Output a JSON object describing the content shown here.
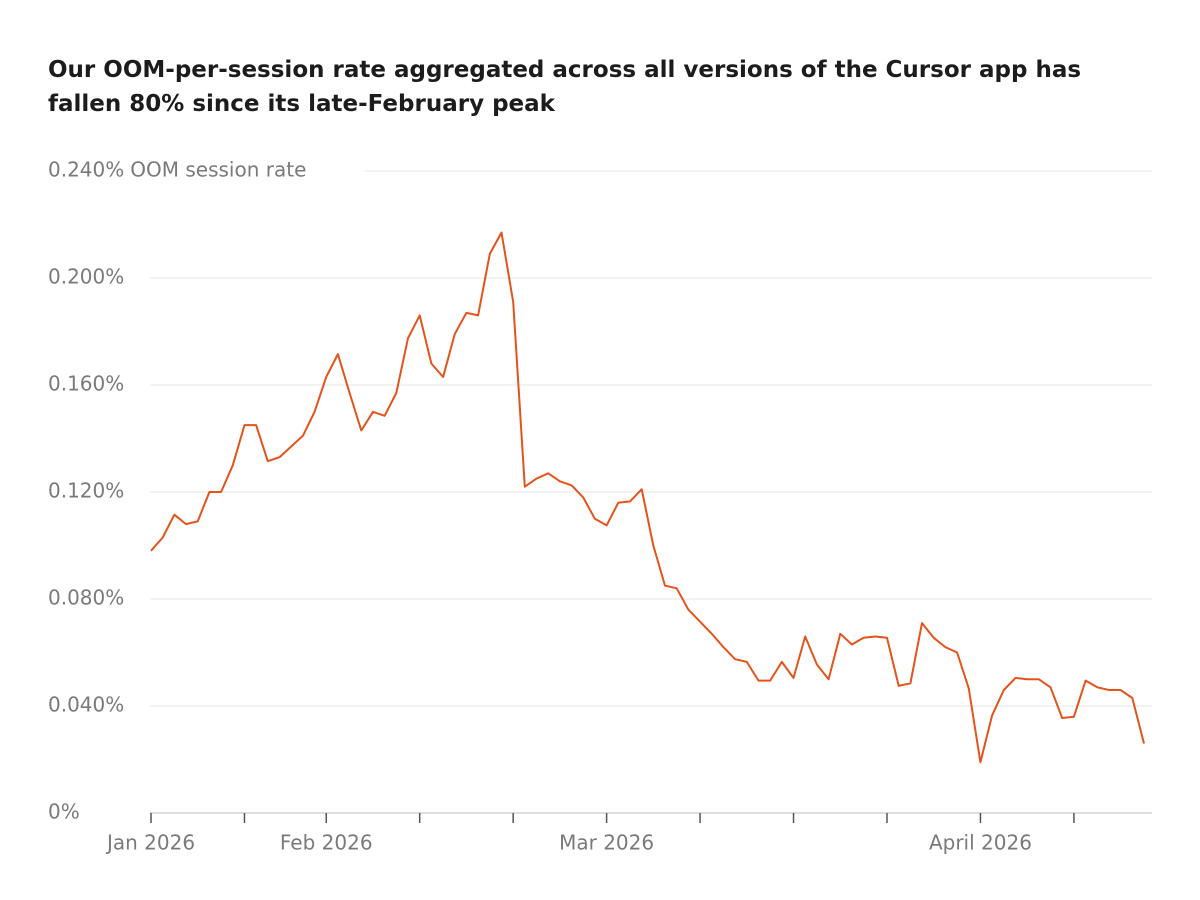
{
  "chart_data": {
    "type": "line",
    "title": "Our OOM-per-session rate aggregated across all versions of the Cursor app has fallen 80% since its late-February peak",
    "ylabel": "OOM session rate",
    "categories": [
      "Jan 2026",
      null,
      null,
      null,
      null,
      null,
      null,
      null,
      null,
      null,
      null,
      null,
      null,
      null,
      null,
      "Feb 2026",
      null,
      null,
      null,
      null,
      null,
      null,
      null,
      null,
      null,
      null,
      null,
      null,
      null,
      null,
      null,
      null,
      null,
      null,
      null,
      null,
      null,
      null,
      null,
      "Mar 2026",
      null,
      null,
      null,
      null,
      null,
      null,
      null,
      null,
      null,
      null,
      null,
      null,
      null,
      null,
      null,
      null,
      null,
      null,
      null,
      null,
      null,
      null,
      null,
      null,
      null,
      null,
      null,
      null,
      null,
      null,
      null,
      "April 2026",
      null,
      null,
      null,
      null,
      null,
      null,
      null,
      null,
      null,
      null,
      null,
      null,
      null,
      null
    ],
    "series": [
      {
        "name": "OOM session rate",
        "color": "#e4531b",
        "values": [
          0.098,
          0.103,
          0.1115,
          0.108,
          0.109,
          0.12,
          0.12,
          0.13,
          0.145,
          0.145,
          0.1315,
          0.133,
          0.137,
          0.141,
          0.15,
          0.163,
          0.1715,
          0.157,
          0.143,
          0.15,
          0.1485,
          0.157,
          0.1775,
          0.186,
          0.168,
          0.163,
          0.179,
          0.187,
          0.186,
          0.209,
          0.217,
          0.191,
          0.122,
          0.125,
          0.127,
          0.124,
          0.1225,
          0.118,
          0.11,
          0.1075,
          0.116,
          0.1165,
          0.121,
          0.1,
          0.085,
          0.084,
          0.076,
          0.0715,
          0.067,
          0.062,
          0.0575,
          0.0565,
          0.0495,
          0.0495,
          0.0565,
          0.0505,
          0.066,
          0.0555,
          0.05,
          0.067,
          0.063,
          0.0655,
          0.066,
          0.0655,
          0.0475,
          0.0485,
          0.071,
          0.0655,
          0.062,
          0.06,
          0.0465,
          0.019,
          0.0365,
          0.046,
          0.0505,
          0.05,
          0.05,
          0.047,
          0.0355,
          0.036,
          0.0495,
          0.047,
          0.046,
          0.046,
          0.043,
          0.026
        ]
      }
    ],
    "ylim": [
      0,
      0.24
    ],
    "yticks": [
      {
        "value": 0,
        "label": "0%"
      },
      {
        "value": 0.04,
        "label": "0.040%"
      },
      {
        "value": 0.08,
        "label": "0.080%"
      },
      {
        "value": 0.12,
        "label": "0.120%"
      },
      {
        "value": 0.16,
        "label": "0.160%"
      },
      {
        "value": 0.2,
        "label": "0.200%"
      },
      {
        "value": 0.24,
        "label": "0.240%"
      }
    ],
    "grid": true
  }
}
